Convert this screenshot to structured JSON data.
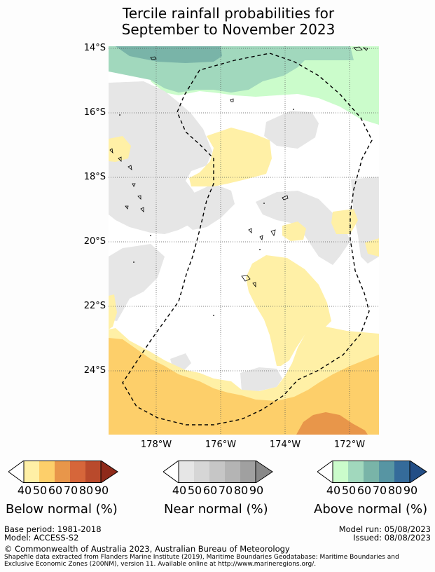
{
  "title": {
    "line1": "Tercile rainfall probabilities for",
    "line2": "September to November 2023"
  },
  "axes": {
    "lat_labels": [
      "14°S",
      "16°S",
      "18°S",
      "20°S",
      "22°S",
      "24°S"
    ],
    "lon_labels": [
      "178°W",
      "176°W",
      "174°W",
      "172°W"
    ]
  },
  "colors": {
    "below": [
      "#fff0a6",
      "#fdcf6a",
      "#e8964a",
      "#d6663a",
      "#b94a2c",
      "#8f2a1a"
    ],
    "near": [
      "#e6e6e6",
      "#d6d6d6",
      "#c6c6c6",
      "#b4b4b4",
      "#a0a0a0",
      "#888888"
    ],
    "above": [
      "#cbfccb",
      "#a1d8bd",
      "#79b4a8",
      "#5795a3",
      "#356b9a",
      "#234e86"
    ],
    "land_outline": "#000000",
    "eez_line": "#000000"
  },
  "legends": [
    {
      "label": "Below normal (%)",
      "ticks": [
        "40",
        "50",
        "60",
        "70",
        "80",
        "90"
      ]
    },
    {
      "label": "Near normal (%)",
      "ticks": [
        "40",
        "50",
        "60",
        "70",
        "80",
        "90"
      ]
    },
    {
      "label": "Above normal (%)",
      "ticks": [
        "40",
        "50",
        "60",
        "70",
        "80",
        "90"
      ]
    }
  ],
  "footer": {
    "base_period": "Base period: 1981-2018",
    "model": "Model: ACCESS-S2",
    "model_run": "Model run: 05/08/2023",
    "issued": "Issued: 08/08/2023",
    "copyright": "© Commonwealth of Australia 2023, Australian Bureau of Meteorology",
    "shapefile_line1": "Shapefile data extracted from Flanders Marine Institute (2019), Maritime Boundaries Geodatabase: Maritime Boundaries and",
    "shapefile_line2": "Exclusive Economic Zones (200NM), version 11. Available online at http://www.marineregions.org/."
  }
}
